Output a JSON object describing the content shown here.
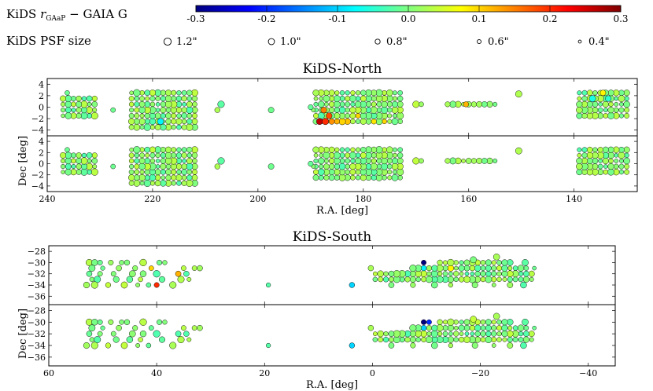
{
  "chart_data": {
    "type": "scatter",
    "colorbar": {
      "label_prefix": "KiDS ",
      "label_r": "r",
      "label_sub": "GAaP",
      "label_suffix": " − GAIA G",
      "ticks": [
        "-0.3",
        "-0.2",
        "-0.1",
        "0.0",
        "0.1",
        "0.2",
        "0.3"
      ],
      "range": [
        -0.3,
        0.3
      ]
    },
    "psf_legend": {
      "label": "KiDS PSF size",
      "entries": [
        "1.2\"",
        "1.0\"",
        "0.8\"",
        "0.6\"",
        "0.4\""
      ],
      "psf_values": [
        1.2,
        1.0,
        0.8,
        0.6,
        0.4
      ]
    },
    "panels": [
      {
        "id": "north",
        "title": "KiDS-North",
        "xlabel": "R.A. [deg]",
        "ylabel": "Dec [deg]",
        "xlim": [
          240,
          128
        ],
        "ylim": [
          -5,
          5
        ],
        "xticks": [
          "240",
          "220",
          "200",
          "180",
          "160",
          "140"
        ],
        "xtick_values": [
          240,
          220,
          200,
          180,
          160,
          140
        ],
        "yticks": [
          "4",
          "2",
          "0",
          "−2",
          "−4"
        ],
        "ytick_values": [
          4,
          2,
          0,
          -2,
          -4
        ],
        "blocks": [
          {
            "ra": [
              231,
              237.8
            ],
            "dec": [
              -1.5,
              1.5
            ],
            "step": 1
          },
          {
            "ra": [
              236.2,
              237
            ],
            "dec": [
              2.5,
              2.5
            ],
            "step": 1
          },
          {
            "ra": [
              212,
              224.5
            ],
            "dec": [
              -3.5,
              2.5
            ],
            "step": 1
          },
          {
            "ra": [
              173,
              189
            ],
            "dec": [
              -2.5,
              2.5
            ],
            "step": 1
          },
          {
            "ra": [
              155,
              164.2
            ],
            "dec": [
              0.5,
              0.5
            ],
            "step": 1
          },
          {
            "ra": [
              130,
              139.4
            ],
            "dec": [
              -1.5,
              2.5
            ],
            "step": 1
          }
        ],
        "singles": [
          {
            "ra": 227.5,
            "dec": -0.5
          },
          {
            "ra": 207,
            "dec": 0.5
          },
          {
            "ra": 207.7,
            "dec": -0.5
          },
          {
            "ra": 197.5,
            "dec": -0.5
          },
          {
            "ra": 170,
            "dec": 0.5
          },
          {
            "ra": 169,
            "dec": 0.5
          },
          {
            "ra": 150.5,
            "dec": 2.3
          },
          {
            "ra": 189.5,
            "dec": -0.5
          },
          {
            "ra": 190,
            "dec": 0
          }
        ],
        "highlights_top": [
          {
            "ra": 187.5,
            "dec": -0.5,
            "value": 0.15
          },
          {
            "ra": 186.5,
            "dec": -1.5,
            "value": 0.18
          },
          {
            "ra": 188.3,
            "dec": -2.5,
            "value": 0.26
          },
          {
            "ra": 187.2,
            "dec": -2.5,
            "value": 0.2
          },
          {
            "ra": 186,
            "dec": -2.5,
            "value": 0.14
          },
          {
            "ra": 185,
            "dec": -2.5,
            "value": 0.12
          },
          {
            "ra": 184,
            "dec": -2.5,
            "value": 0.1
          },
          {
            "ra": 183,
            "dec": -2.5,
            "value": 0.11
          },
          {
            "ra": 178,
            "dec": -2.5,
            "value": 0.09
          },
          {
            "ra": 176,
            "dec": -2.5,
            "value": 0.1
          },
          {
            "ra": 181,
            "dec": -1.5,
            "value": 0.1
          },
          {
            "ra": 218.5,
            "dec": -2.5,
            "value": -0.08
          },
          {
            "ra": 160.5,
            "dec": 0.5,
            "value": 0.12
          },
          {
            "ra": 136.5,
            "dec": 1.5,
            "value": -0.06
          },
          {
            "ra": 134.5,
            "dec": 2.5,
            "value": 0.08
          },
          {
            "ra": 133.5,
            "dec": 1.5,
            "value": -0.05
          }
        ],
        "highlights_bottom": []
      },
      {
        "id": "south",
        "title": "KiDS-South",
        "xlabel": "R.A. [deg]",
        "ylabel": "Dec [deg]",
        "xlim": [
          60,
          -45
        ],
        "ylim": [
          -37.5,
          -27
        ],
        "xticks": [
          "60",
          "40",
          "20",
          "0",
          "−20",
          "−40"
        ],
        "xtick_values": [
          60,
          40,
          20,
          0,
          -20,
          -40
        ],
        "yticks": [
          "−28",
          "−30",
          "−32",
          "−34",
          "−36"
        ],
        "ytick_values": [
          -28,
          -30,
          -32,
          -34,
          -36
        ],
        "blocks": [
          {
            "ra": [
              -29.5,
              -0.5
            ],
            "dec": [
              -33,
              -32
            ],
            "step": 1
          },
          {
            "ra": [
              -28.5,
              -7.5
            ],
            "dec": [
              -31,
              -31
            ],
            "step": 1
          },
          {
            "ra": [
              -25.5,
              -12.5
            ],
            "dec": [
              -30,
              -30
            ],
            "step": 1
          }
        ],
        "singles": [
          {
            "ra": 52.5,
            "dec": -30
          },
          {
            "ra": 51.5,
            "dec": -30
          },
          {
            "ra": 50.5,
            "dec": -30
          },
          {
            "ra": 48.5,
            "dec": -30
          },
          {
            "ra": 46.5,
            "dec": -30
          },
          {
            "ra": 45.5,
            "dec": -30
          },
          {
            "ra": 42.5,
            "dec": -30
          },
          {
            "ra": 39.5,
            "dec": -30
          },
          {
            "ra": 38.5,
            "dec": -30
          },
          {
            "ra": 52,
            "dec": -31
          },
          {
            "ra": 50,
            "dec": -31
          },
          {
            "ra": 47,
            "dec": -31
          },
          {
            "ra": 44,
            "dec": -31
          },
          {
            "ra": 41,
            "dec": -31
          },
          {
            "ra": 35,
            "dec": -31
          },
          {
            "ra": 33,
            "dec": -31
          },
          {
            "ra": 32,
            "dec": -31
          },
          {
            "ra": 52.5,
            "dec": -32
          },
          {
            "ra": 50.5,
            "dec": -32
          },
          {
            "ra": 48,
            "dec": -32
          },
          {
            "ra": 44.5,
            "dec": -32
          },
          {
            "ra": 42.5,
            "dec": -32
          },
          {
            "ra": 40,
            "dec": -32
          },
          {
            "ra": 36,
            "dec": -32
          },
          {
            "ra": 34.5,
            "dec": -32
          },
          {
            "ra": 52,
            "dec": -33
          },
          {
            "ra": 51,
            "dec": -33
          },
          {
            "ra": 47.5,
            "dec": -33
          },
          {
            "ra": 45,
            "dec": -33
          },
          {
            "ra": 43,
            "dec": -33
          },
          {
            "ra": 39,
            "dec": -33
          },
          {
            "ra": 35.5,
            "dec": -33
          },
          {
            "ra": 34,
            "dec": -33
          },
          {
            "ra": 53,
            "dec": -34
          },
          {
            "ra": 51.5,
            "dec": -34
          },
          {
            "ra": 49,
            "dec": -34
          },
          {
            "ra": 46,
            "dec": -34
          },
          {
            "ra": 43.5,
            "dec": -34
          },
          {
            "ra": 41.5,
            "dec": -34
          },
          {
            "ra": 37,
            "dec": -34
          },
          {
            "ra": 19.3,
            "dec": -34
          },
          {
            "ra": 3.8,
            "dec": -34
          },
          {
            "ra": 0.3,
            "dec": -31
          },
          {
            "ra": -30,
            "dec": -31
          },
          {
            "ra": -28.3,
            "dec": -30
          },
          {
            "ra": -23,
            "dec": -29
          },
          {
            "ra": -18.7,
            "dec": -29.5
          },
          {
            "ra": -3.5,
            "dec": -34
          },
          {
            "ra": -7.5,
            "dec": -34
          },
          {
            "ra": -11.5,
            "dec": -34
          },
          {
            "ra": -14.5,
            "dec": -34
          },
          {
            "ra": -19,
            "dec": -34
          },
          {
            "ra": -22.5,
            "dec": -34
          },
          {
            "ra": -25.5,
            "dec": -34
          },
          {
            "ra": -28,
            "dec": -34
          }
        ],
        "highlights_top": [
          {
            "ra": 41,
            "dec": -31,
            "value": 0.1
          },
          {
            "ra": 36,
            "dec": -32,
            "value": 0.12
          },
          {
            "ra": 40,
            "dec": -34,
            "value": 0.2
          },
          {
            "ra": 3.8,
            "dec": -34,
            "value": -0.1
          },
          {
            "ra": -9.5,
            "dec": -30,
            "value": -0.3
          },
          {
            "ra": -9.5,
            "dec": -31,
            "value": -0.08
          },
          {
            "ra": -14.5,
            "dec": -31,
            "value": 0.08
          }
        ],
        "highlights_bottom": [
          {
            "ra": -9.5,
            "dec": -30,
            "value": -0.3
          },
          {
            "ra": -10.5,
            "dec": -30,
            "value": -0.2
          },
          {
            "ra": -9.5,
            "dec": -31,
            "value": -0.1
          },
          {
            "ra": 3.8,
            "dec": -34,
            "value": -0.1
          },
          {
            "ra": -18.7,
            "dec": -29.5,
            "value": 0.04
          }
        ]
      }
    ]
  }
}
